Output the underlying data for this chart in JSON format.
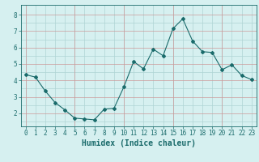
{
  "x": [
    0,
    1,
    2,
    3,
    4,
    5,
    6,
    7,
    8,
    9,
    10,
    11,
    12,
    13,
    14,
    15,
    16,
    17,
    18,
    19,
    20,
    21,
    22,
    23
  ],
  "y": [
    4.35,
    4.2,
    3.35,
    2.65,
    2.2,
    1.7,
    1.65,
    1.6,
    2.25,
    2.3,
    3.6,
    5.15,
    4.7,
    5.9,
    5.5,
    7.15,
    7.75,
    6.4,
    5.75,
    5.7,
    4.65,
    4.95,
    4.3,
    4.05
  ],
  "line_color": "#1a6b6b",
  "marker": "D",
  "marker_size": 2,
  "bg_color": "#d6f0f0",
  "grid_teal_color": "#aed4d4",
  "grid_red_color": "#cc9999",
  "xlabel": "Humidex (Indice chaleur)",
  "xlim": [
    -0.5,
    23.5
  ],
  "ylim": [
    1.2,
    8.6
  ],
  "yticks": [
    2,
    3,
    4,
    5,
    6,
    7,
    8
  ],
  "xticks": [
    0,
    1,
    2,
    3,
    4,
    5,
    6,
    7,
    8,
    9,
    10,
    11,
    12,
    13,
    14,
    15,
    16,
    17,
    18,
    19,
    20,
    21,
    22,
    23
  ],
  "tick_fontsize": 5.5,
  "xlabel_fontsize": 7,
  "label_color": "#1a6b6b",
  "spine_color": "#1a6b6b"
}
